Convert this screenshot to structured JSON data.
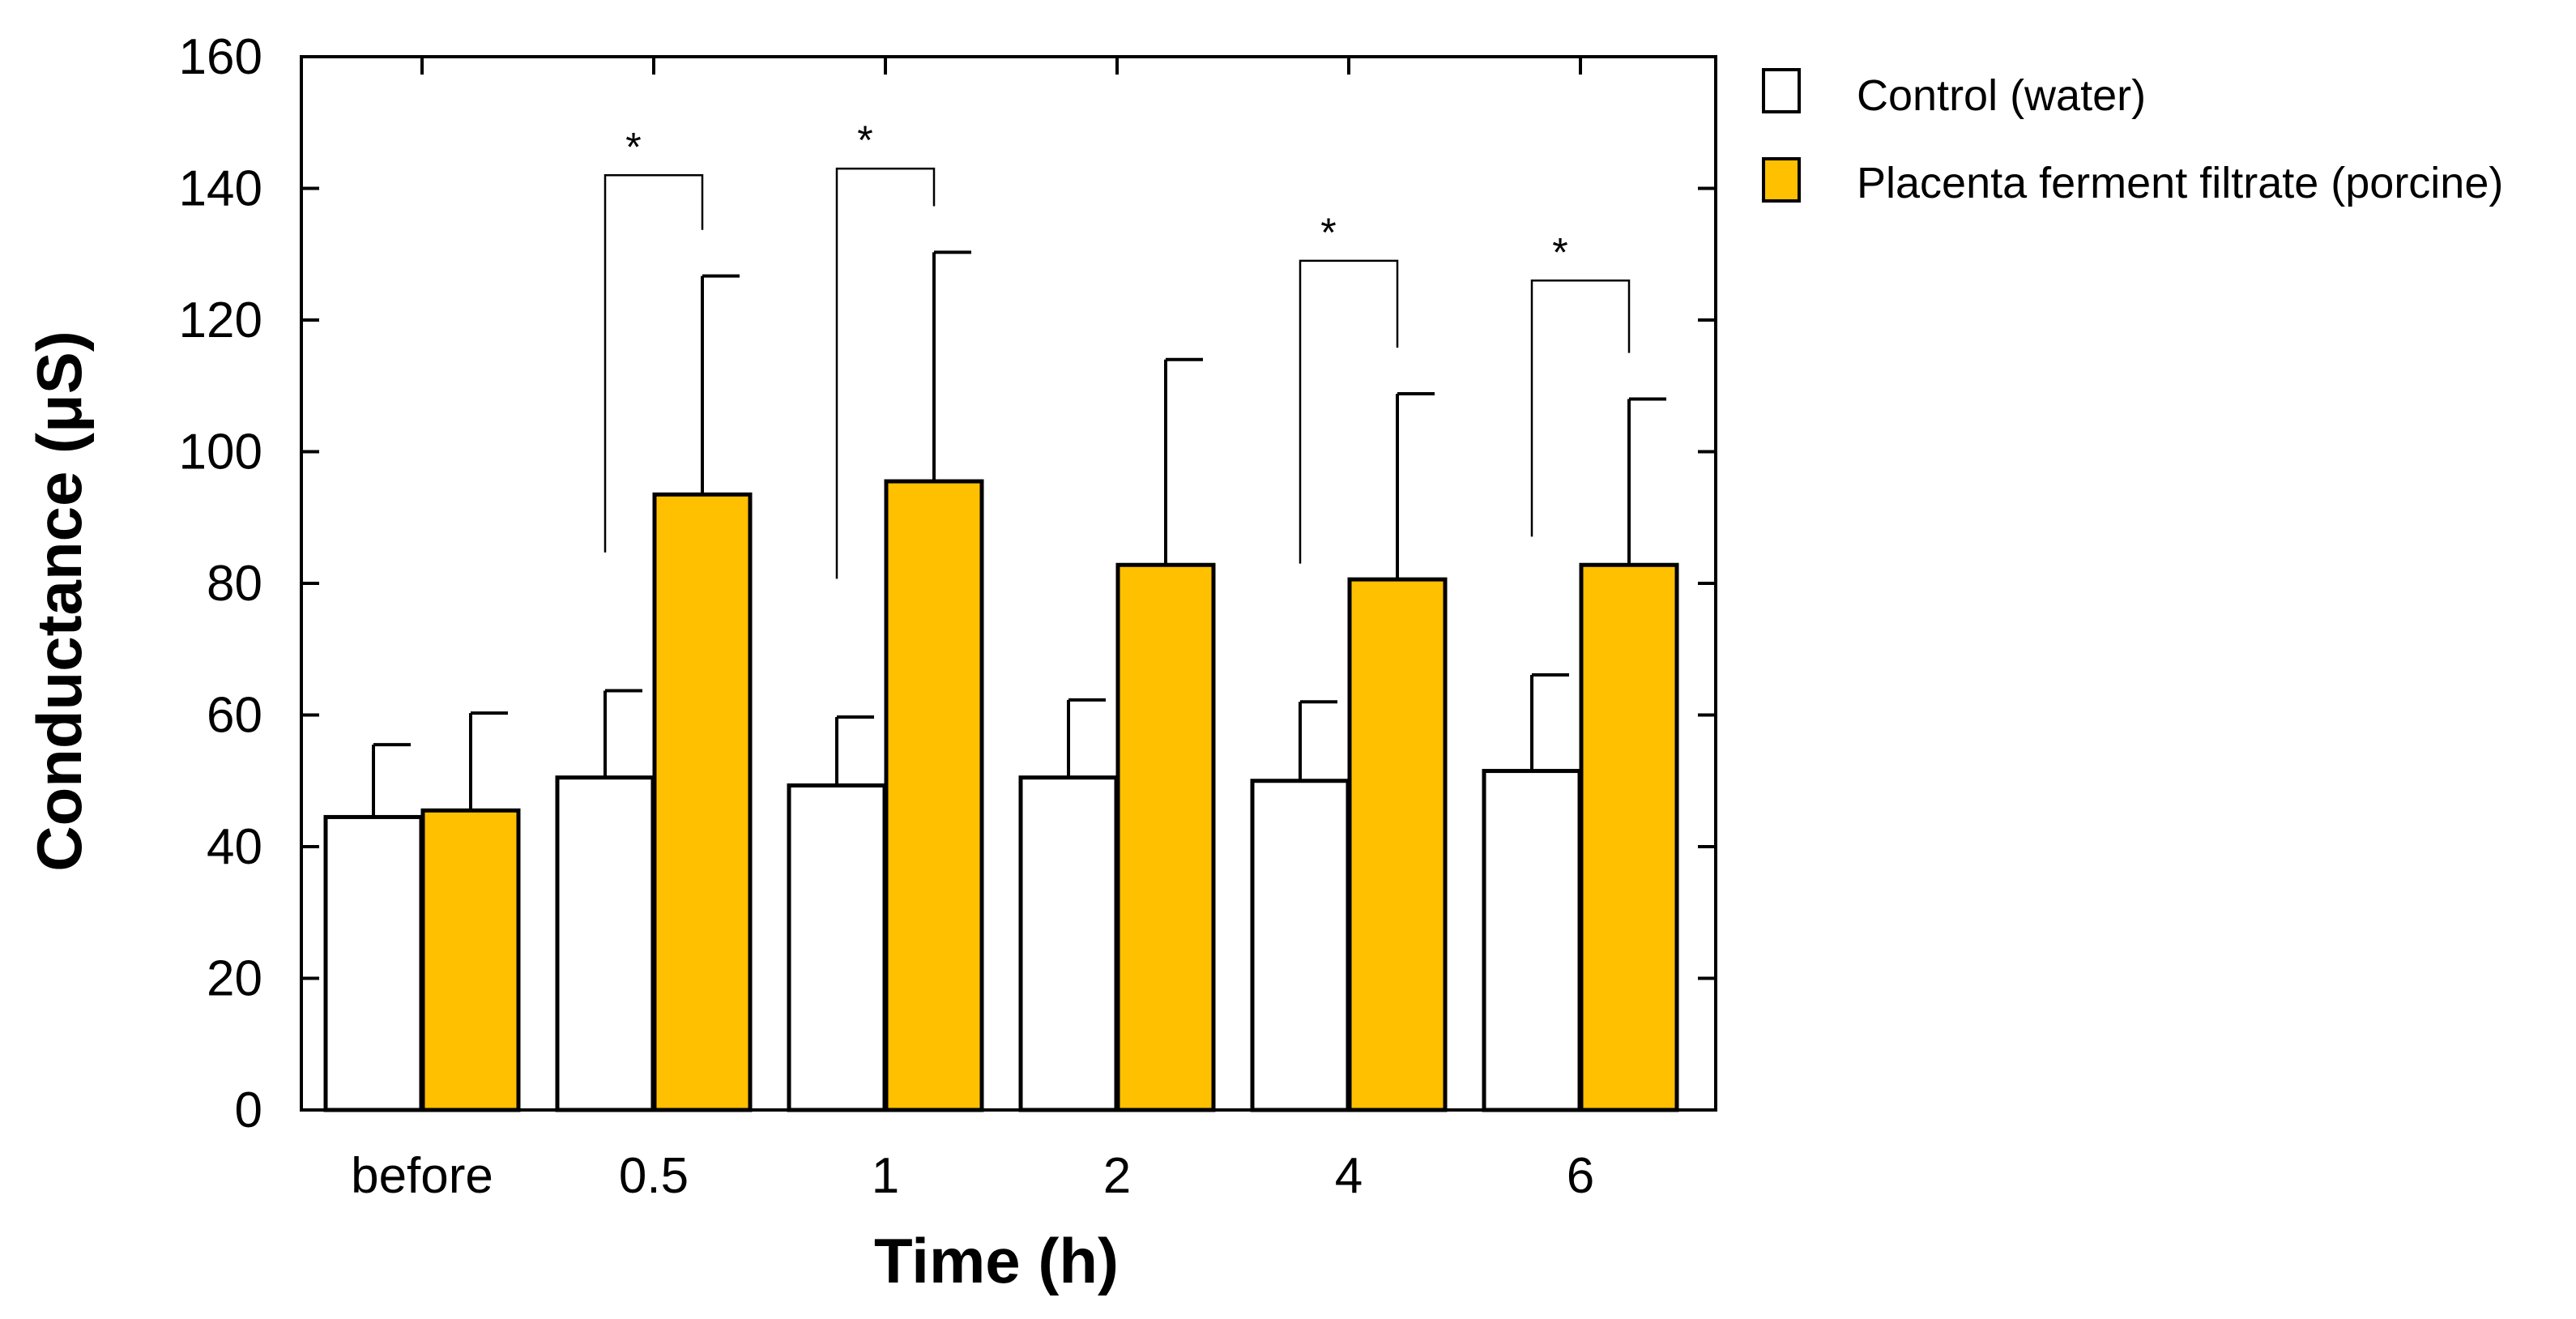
{
  "chart_data": {
    "type": "bar",
    "title": "",
    "xlabel": "Time (h)",
    "ylabel": "Conductance (μS)",
    "ylim": [
      0,
      160
    ],
    "yticks": [
      0,
      20,
      40,
      60,
      80,
      100,
      120,
      140,
      160
    ],
    "categories": [
      "before",
      "0.5",
      "1",
      "2",
      "4",
      "6"
    ],
    "series": [
      {
        "name": "Control (water)",
        "color": "#ffffff",
        "values": [
          44.5,
          50.5,
          49.3,
          50.5,
          50.0,
          51.5
        ],
        "errors": [
          11.0,
          13.2,
          10.4,
          11.8,
          12.0,
          14.6
        ]
      },
      {
        "name": "Placenta ferment filtrate (porcine)",
        "color": "#ffc000",
        "values": [
          45.5,
          93.5,
          95.5,
          82.8,
          80.6,
          82.8
        ],
        "errors": [
          14.8,
          33.2,
          34.8,
          31.2,
          28.2,
          25.2
        ]
      }
    ],
    "significance": [
      {
        "category": "0.5",
        "label": "*",
        "line_y": 142
      },
      {
        "category": "1",
        "label": "*",
        "line_y": 143
      },
      {
        "category": "4",
        "label": "*",
        "line_y": 129
      },
      {
        "category": "6",
        "label": "*",
        "line_y": 126
      }
    ],
    "legend_position": "top-right, outside plot",
    "grid": false
  }
}
